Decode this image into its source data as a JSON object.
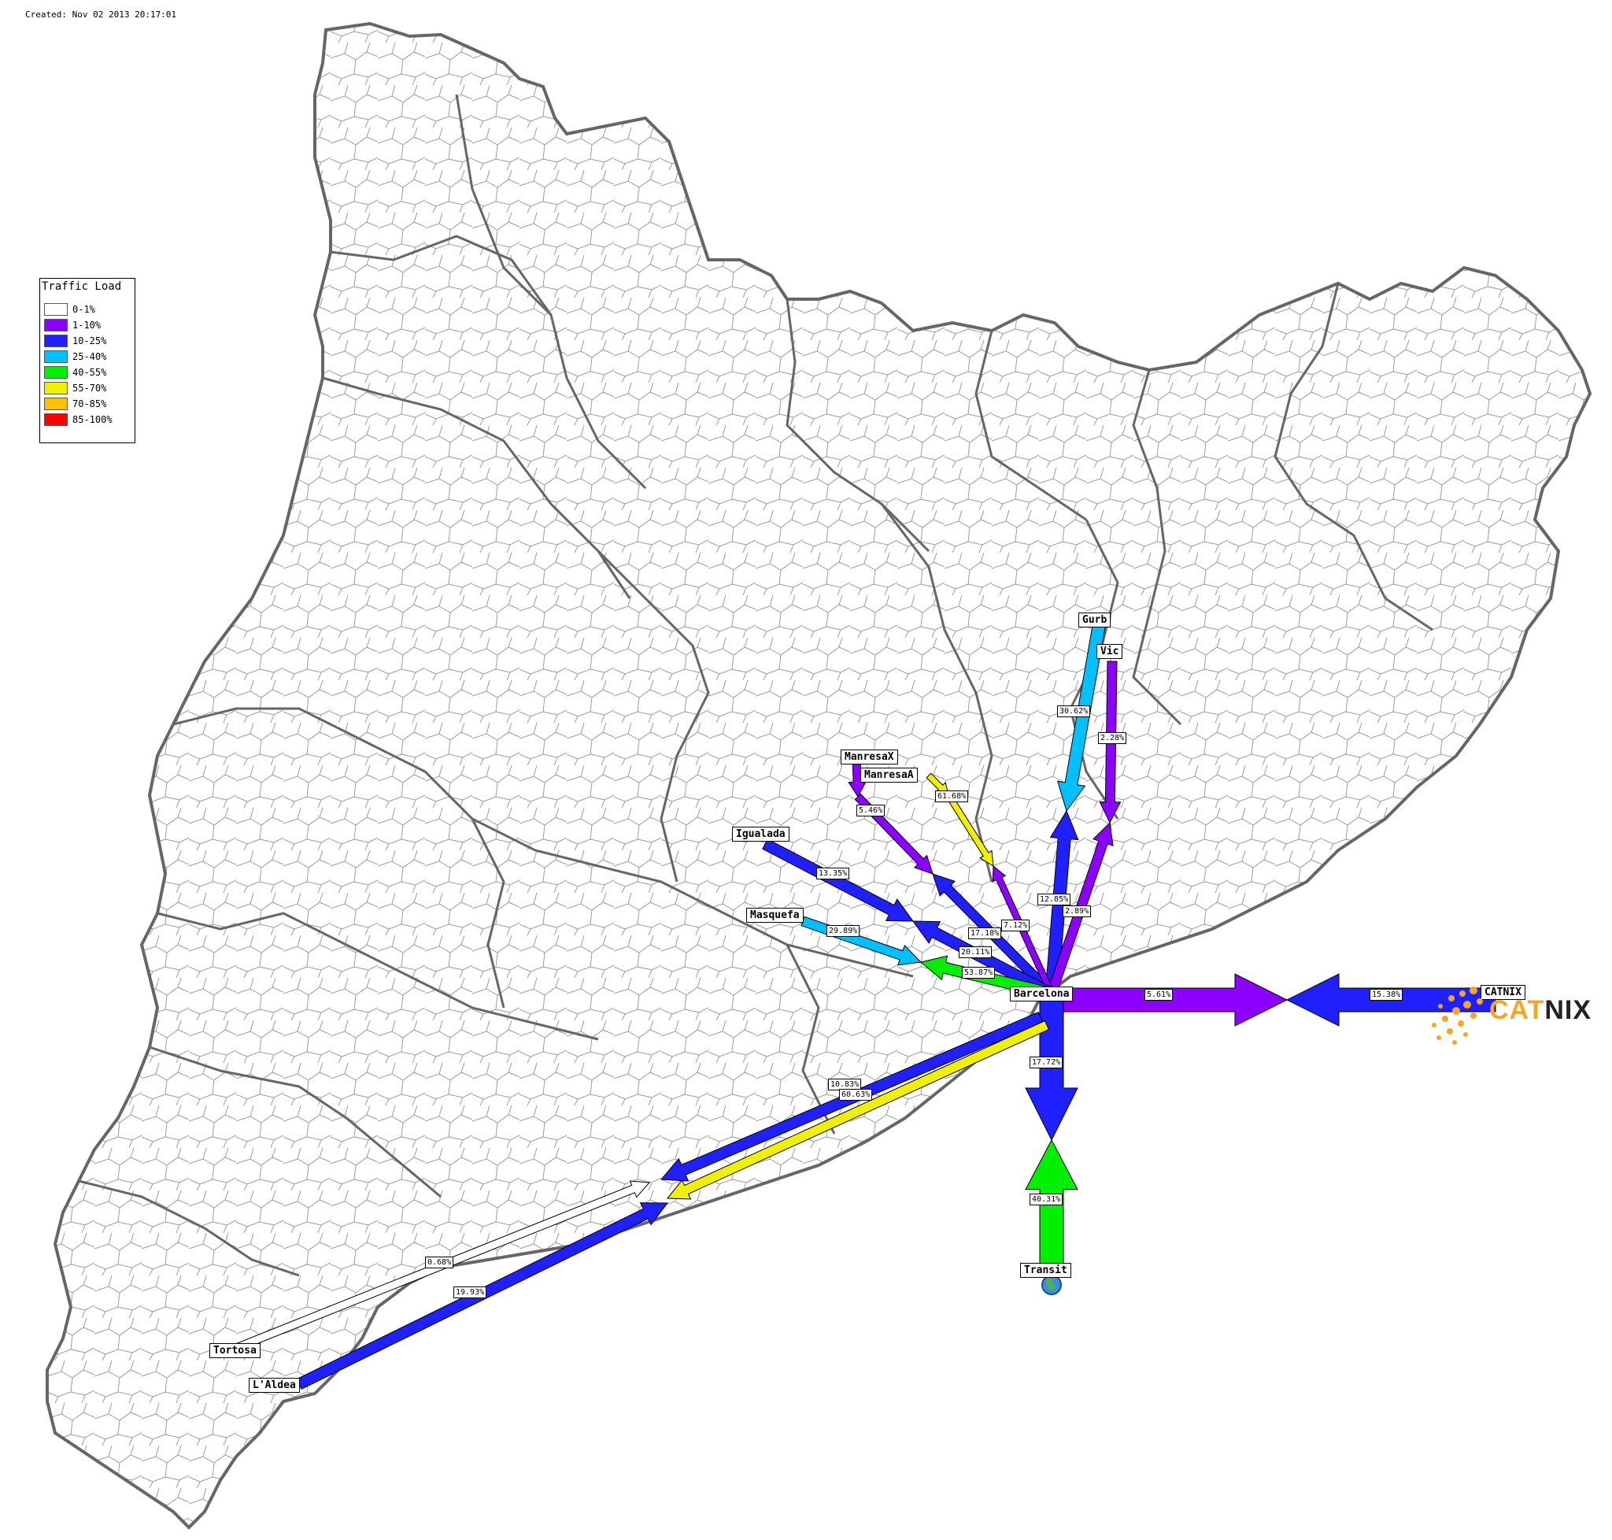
{
  "created": "Created: Nov 02 2013 20:17:01",
  "legend": {
    "title": "Traffic Load",
    "items": [
      {
        "label": "0-1%",
        "color": "#ffffff"
      },
      {
        "label": "1-10%",
        "color": "#8c00ff"
      },
      {
        "label": "10-25%",
        "color": "#2020ff"
      },
      {
        "label": "25-40%",
        "color": "#00c0ff"
      },
      {
        "label": "40-55%",
        "color": "#00f000"
      },
      {
        "label": "55-70%",
        "color": "#f0f000"
      },
      {
        "label": "70-85%",
        "color": "#ffc000"
      },
      {
        "label": "85-100%",
        "color": "#ff0000"
      }
    ]
  },
  "nodes": {
    "gurb": "Gurb",
    "vic": "Vic",
    "manresax": "ManresaX",
    "manresaa": "ManresaA",
    "igualada": "Igualada",
    "masquefa": "Masquefa",
    "barcelona": "Barcelona",
    "catnix": "CATNIX",
    "transit": "Transit",
    "tortosa": "Tortosa",
    "laldea": "L'Aldea"
  },
  "links": {
    "gurb_bcn": "30.62%",
    "bcn_gurb": "12.85%",
    "vic_bcn": "2.28%",
    "bcn_vic": "2.89%",
    "manresax_bcn": "5.46%",
    "bcn_manresax": "17.18%",
    "manresaa_bcn": "61.68%",
    "bcn_manresaa": "7.12%",
    "igualada_bcn": "13.35%",
    "bcn_igualada": "20.11%",
    "masquefa_bcn": "29.89%",
    "bcn_masquefa": "53.87%",
    "bcn_catnix": "5.61%",
    "catnix_bcn": "15.38%",
    "bcn_transit": "17.72%",
    "transit_bcn": "40.31%",
    "bcn_south": "10.83%",
    "bcn_south_b": "60.63%",
    "tortosa_link": "0.68%",
    "laldea_link": "19.93%"
  },
  "logo": {
    "part1": "CAT",
    "part2": "NIX"
  },
  "colors": {
    "c1_10": "#8c00ff",
    "c10_25": "#2020ff",
    "c25_40": "#00c0ff",
    "c40_55": "#00f000",
    "c55_70": "#f0f000",
    "white": "#ffffff"
  }
}
